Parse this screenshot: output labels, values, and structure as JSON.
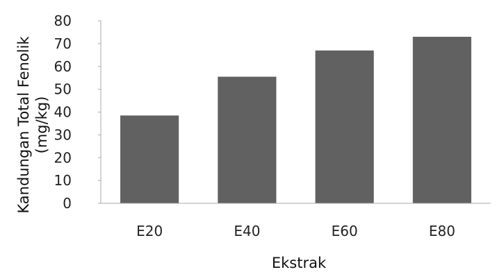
{
  "chart_data": {
    "type": "bar",
    "categories": [
      "E20",
      "E40",
      "E60",
      "E80"
    ],
    "values": [
      38.5,
      55.5,
      67,
      73
    ],
    "title": "",
    "xlabel": "Ekstrak",
    "ylabel_lines": [
      "Kandungan Total Fenolik",
      "(mg/kg)"
    ],
    "ylim": [
      0,
      80
    ],
    "yticks": [
      0,
      10,
      20,
      30,
      40,
      50,
      60,
      70,
      80
    ],
    "grid": false,
    "legend": "none",
    "bar_color": "#616161",
    "axis_color": "#aaaaaa"
  }
}
